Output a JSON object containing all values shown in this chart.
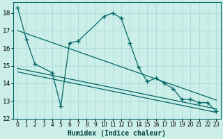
{
  "xlabel": "Humidex (Indice chaleur)",
  "bg_color": "#cceee8",
  "grid_color": "#aadddd",
  "line_color": "#006666",
  "xlim": [
    -0.5,
    23.5
  ],
  "ylim": [
    12,
    18.6
  ],
  "yticks": [
    12,
    13,
    14,
    15,
    16,
    17,
    18
  ],
  "xticks": [
    0,
    1,
    2,
    3,
    4,
    5,
    6,
    7,
    8,
    9,
    10,
    11,
    12,
    13,
    14,
    15,
    16,
    17,
    18,
    19,
    20,
    21,
    22,
    23
  ],
  "main_x": [
    0,
    1,
    2,
    4,
    5,
    6,
    7,
    10,
    11,
    12,
    13,
    14,
    15,
    16,
    17,
    18,
    19,
    20,
    21,
    22,
    23
  ],
  "main_y": [
    18.3,
    16.5,
    15.1,
    14.6,
    12.7,
    16.3,
    16.4,
    17.8,
    18.0,
    17.7,
    16.3,
    14.9,
    14.1,
    14.3,
    14.0,
    13.7,
    13.1,
    13.1,
    12.9,
    12.9,
    12.4
  ],
  "trend1_x": [
    0,
    23
  ],
  "trend1_y": [
    17.0,
    13.05
  ],
  "trend2_x": [
    0,
    23
  ],
  "trend2_y": [
    14.85,
    12.55
  ],
  "trend3_x": [
    0,
    23
  ],
  "trend3_y": [
    14.65,
    12.35
  ]
}
